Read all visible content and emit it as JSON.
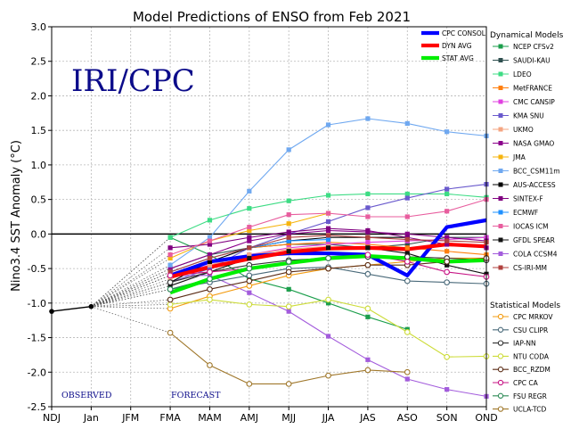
{
  "chart_data": {
    "type": "line",
    "title": "Model Predictions of ENSO from Feb 2021",
    "ylabel": "Nino3.4 SST Anomaly (°C)",
    "xlabel": "",
    "ylim": [
      -2.5,
      3.0
    ],
    "yticks": [
      -2.5,
      -2.0,
      -1.5,
      -1.0,
      -0.5,
      0.0,
      0.5,
      1.0,
      1.5,
      2.0,
      2.5,
      3.0
    ],
    "categories": [
      "NDJ",
      "Jan",
      "JFM",
      "FMA",
      "MAM",
      "AMJ",
      "MJJ",
      "JJA",
      "JAS",
      "ASO",
      "SON",
      "OND"
    ],
    "grid": true,
    "zero_line": true,
    "watermark": "IRI/CPC",
    "observed_label": "OBSERVED",
    "forecast_label": "FORECAST",
    "observed": [
      -1.12,
      -1.05
    ],
    "highlight_series": [
      {
        "name": "CPC CONSOL",
        "color": "#0000ff",
        "values": [
          null,
          null,
          null,
          -0.6,
          -0.4,
          -0.32,
          -0.28,
          -0.28,
          -0.3,
          -0.6,
          0.1,
          0.2
        ]
      },
      {
        "name": "DYN AVG",
        "color": "#ff0000",
        "values": [
          null,
          null,
          null,
          -0.62,
          -0.48,
          -0.36,
          -0.26,
          -0.21,
          -0.2,
          -0.22,
          -0.15,
          -0.18
        ]
      },
      {
        "name": "STAT AVG",
        "color": "#00ee00",
        "values": [
          null,
          null,
          null,
          -0.85,
          -0.65,
          -0.5,
          -0.42,
          -0.35,
          -0.32,
          -0.35,
          -0.4,
          -0.38
        ]
      }
    ],
    "dynamical_title": "Dynamical Models",
    "dynamical_models": [
      {
        "name": "NCEP CFSv2",
        "color": "#1b9e4b",
        "values": [
          null,
          null,
          null,
          -0.05,
          -0.3,
          -0.65,
          -0.8,
          -1.0,
          -1.2,
          -1.38,
          null,
          null
        ]
      },
      {
        "name": "SAUDI-KAU",
        "color": "#2f4f4f",
        "values": [
          null,
          null,
          null,
          -0.5,
          -0.3,
          -0.2,
          -0.15,
          -0.15,
          -0.2,
          -0.15,
          -0.05,
          -0.05
        ]
      },
      {
        "name": "LDEO",
        "color": "#3ddc84",
        "values": [
          null,
          null,
          null,
          -0.05,
          0.2,
          0.37,
          0.48,
          0.56,
          0.58,
          0.58,
          0.58,
          0.53
        ]
      },
      {
        "name": "MetFRANCE",
        "color": "#ff7f0e",
        "values": [
          null,
          null,
          null,
          -0.55,
          -0.35,
          -0.2,
          -0.15,
          -0.12,
          -0.15,
          -0.2,
          -0.25,
          -0.3
        ]
      },
      {
        "name": "CMC CANSIP",
        "color": "#e040e0",
        "values": [
          null,
          null,
          null,
          -0.6,
          -0.45,
          -0.3,
          -0.2,
          -0.15,
          -0.12,
          -0.1,
          -0.08,
          -0.05
        ]
      },
      {
        "name": "KMA SNU",
        "color": "#6a5acd",
        "values": [
          null,
          null,
          null,
          -0.7,
          -0.5,
          -0.2,
          0.0,
          0.18,
          0.38,
          0.52,
          0.65,
          0.72
        ]
      },
      {
        "name": "UKMO",
        "color": "#f4a582",
        "values": [
          null,
          null,
          null,
          -0.65,
          -0.45,
          -0.3,
          -0.22,
          -0.18,
          null,
          null,
          null,
          null
        ]
      },
      {
        "name": "NASA GMAO",
        "color": "#8b008b",
        "values": [
          null,
          null,
          null,
          -0.5,
          -0.3,
          -0.1,
          0.0,
          0.05,
          0.03,
          0.0,
          -0.05,
          -0.1
        ]
      },
      {
        "name": "JMA",
        "color": "#f6b40e",
        "values": [
          null,
          null,
          null,
          -0.35,
          -0.1,
          0.05,
          0.15,
          0.3,
          null,
          null,
          null,
          null
        ]
      },
      {
        "name": "BCC_CSM11m",
        "color": "#6fa8f0",
        "values": [
          null,
          null,
          null,
          -0.45,
          -0.05,
          0.62,
          1.22,
          1.58,
          1.67,
          1.6,
          1.48,
          1.42
        ]
      },
      {
        "name": "AUS-ACCESS",
        "color": "#000000",
        "values": [
          null,
          null,
          null,
          -0.7,
          -0.4,
          -0.2,
          -0.1,
          -0.05,
          -0.05,
          -0.05,
          null,
          null
        ]
      },
      {
        "name": "SINTEX-F",
        "color": "#800080",
        "values": [
          null,
          null,
          null,
          -0.2,
          -0.15,
          -0.05,
          0.03,
          0.08,
          0.05,
          -0.05,
          -0.15,
          -0.2
        ]
      },
      {
        "name": "ECMWF",
        "color": "#1e90ff",
        "values": [
          null,
          null,
          null,
          -0.55,
          -0.35,
          -0.2,
          -0.1,
          -0.08,
          null,
          null,
          null,
          null
        ]
      },
      {
        "name": "IOCAS ICM",
        "color": "#e85d9e",
        "values": [
          null,
          null,
          null,
          -0.3,
          -0.1,
          0.1,
          0.28,
          0.3,
          0.25,
          0.25,
          0.33,
          0.5
        ]
      },
      {
        "name": "GFDL SPEAR",
        "color": "#111111",
        "values": [
          null,
          null,
          null,
          -0.75,
          -0.55,
          -0.35,
          -0.25,
          -0.2,
          -0.2,
          -0.28,
          -0.45,
          -0.58
        ]
      },
      {
        "name": "COLA CCSM4",
        "color": "#a35cdc",
        "values": [
          null,
          null,
          null,
          -0.6,
          -0.6,
          -0.85,
          -1.12,
          -1.48,
          -1.82,
          -2.1,
          -2.25,
          -2.35
        ]
      },
      {
        "name": "CS-IRI-MM",
        "color": "#b0413e",
        "values": [
          null,
          null,
          null,
          -0.55,
          -0.35,
          -0.2,
          -0.05,
          -0.02,
          -0.05,
          -0.08,
          -0.1,
          -0.12
        ]
      }
    ],
    "statistical_title": "Statistical Models",
    "statistical_models": [
      {
        "name": "CPC MRKOV",
        "color": "#f39c12",
        "values": [
          null,
          null,
          null,
          -1.08,
          -0.9,
          -0.75,
          -0.6,
          -0.5,
          -0.45,
          -0.4,
          -0.35,
          -0.35
        ]
      },
      {
        "name": "CSU CLIPR",
        "color": "#4a6a7a",
        "values": [
          null,
          null,
          null,
          -0.8,
          -0.7,
          -0.6,
          -0.5,
          -0.48,
          -0.58,
          -0.68,
          -0.7,
          -0.72
        ]
      },
      {
        "name": "IAP-NN",
        "color": "#333333",
        "values": [
          null,
          null,
          null,
          -0.7,
          -0.55,
          -0.45,
          -0.38,
          -0.35,
          -0.33,
          -0.33,
          -0.35,
          -0.38
        ]
      },
      {
        "name": "NTU CODA",
        "color": "#cddc39",
        "values": [
          null,
          null,
          null,
          -1.02,
          -0.95,
          -1.02,
          -1.05,
          -0.95,
          -1.08,
          -1.42,
          -1.78,
          -1.77
        ]
      },
      {
        "name": "BCC_RZDM",
        "color": "#5b2c16",
        "values": [
          null,
          null,
          null,
          -0.95,
          -0.8,
          -0.68,
          -0.55,
          -0.5,
          -0.45,
          -0.45,
          -0.4,
          -0.35
        ]
      },
      {
        "name": "CPC CA",
        "color": "#c71585",
        "values": [
          null,
          null,
          null,
          -0.6,
          -0.55,
          -0.5,
          -0.4,
          -0.35,
          -0.3,
          -0.4,
          -0.55,
          -0.62
        ]
      },
      {
        "name": "FSU REGR",
        "color": "#2e8b57",
        "values": [
          null,
          null,
          null,
          -0.8,
          -0.65,
          -0.5,
          -0.4,
          -0.35,
          null,
          null,
          null,
          null
        ]
      },
      {
        "name": "UCLA-TCD",
        "color": "#a0782c",
        "values": [
          null,
          null,
          null,
          -1.43,
          -1.9,
          -2.17,
          -2.17,
          -2.05,
          -1.97,
          -2.0,
          null,
          null
        ]
      }
    ]
  }
}
